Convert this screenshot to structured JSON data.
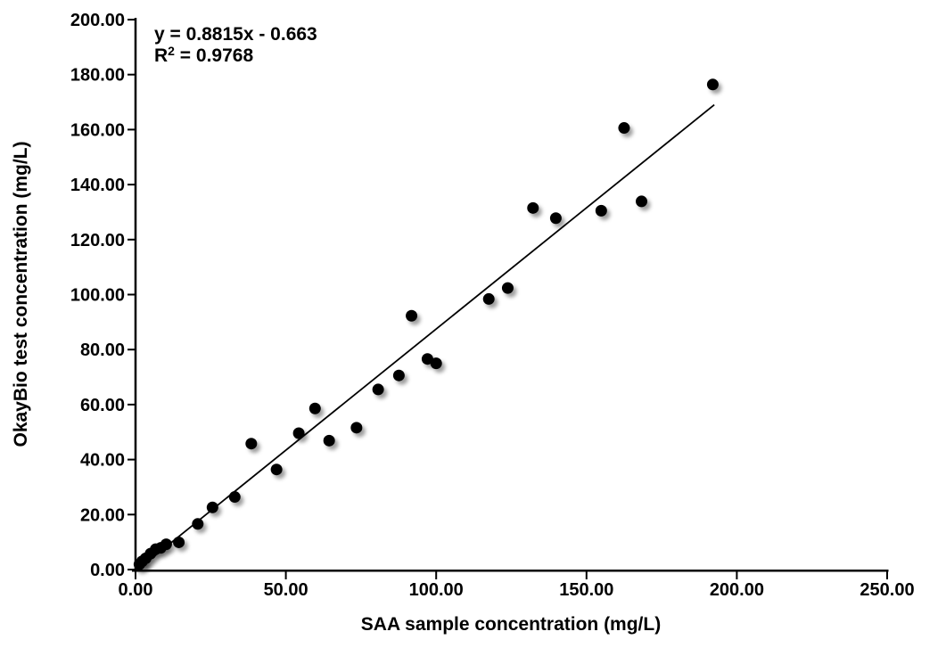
{
  "page": {
    "background": "#ffffff"
  },
  "chart_data": {
    "type": "scatter",
    "title": "",
    "xlabel": "SAA sample concentration (mg/L)",
    "ylabel": "OkayBio test concentration (mg/L)",
    "xlim": [
      0,
      250
    ],
    "ylim": [
      0,
      200
    ],
    "grid": false,
    "legend": false,
    "axis_color": "#000000",
    "text_color": "#000000",
    "x_ticks": {
      "values": [
        0,
        50,
        100,
        150,
        200,
        250
      ],
      "labels": [
        "0.00",
        "50.00",
        "100.00",
        "150.00",
        "200.00",
        "250.00"
      ]
    },
    "y_ticks": {
      "values": [
        0,
        20,
        40,
        60,
        80,
        100,
        120,
        140,
        160,
        180,
        200
      ],
      "labels": [
        "0.00",
        "20.00",
        "40.00",
        "60.00",
        "80.00",
        "100.00",
        "120.00",
        "140.00",
        "160.00",
        "180.00",
        "200.00"
      ]
    },
    "annotation": {
      "equation": "y = 0.8815x - 0.663",
      "r2_base": "R",
      "r2_sup": "2",
      "r2_rest": " = 0.9768"
    },
    "trendline": {
      "slope": 0.8815,
      "intercept": -0.663,
      "x_start": 0.75,
      "x_end": 192.5,
      "color": "#000000"
    },
    "marker": {
      "color": "#000000",
      "radius": 6.5
    },
    "points": [
      [
        1.3,
        1.9
      ],
      [
        2.2,
        3.0
      ],
      [
        3.4,
        4.1
      ],
      [
        5.0,
        5.8
      ],
      [
        6.7,
        7.4
      ],
      [
        8.4,
        7.9
      ],
      [
        10.2,
        9.2
      ],
      [
        14.4,
        9.9
      ],
      [
        20.7,
        16.6
      ],
      [
        25.6,
        22.6
      ],
      [
        33.0,
        26.4
      ],
      [
        38.5,
        45.8
      ],
      [
        46.9,
        36.4
      ],
      [
        54.3,
        49.6
      ],
      [
        59.7,
        58.6
      ],
      [
        64.4,
        46.9
      ],
      [
        73.5,
        51.6
      ],
      [
        80.7,
        65.5
      ],
      [
        87.6,
        70.6
      ],
      [
        91.8,
        92.3
      ],
      [
        97.1,
        76.6
      ],
      [
        100.0,
        75.0
      ],
      [
        117.5,
        98.4
      ],
      [
        123.8,
        102.4
      ],
      [
        132.2,
        131.5
      ],
      [
        139.8,
        127.8
      ],
      [
        154.9,
        130.5
      ],
      [
        162.5,
        160.6
      ],
      [
        168.3,
        133.9
      ],
      [
        192.0,
        176.4
      ]
    ]
  }
}
